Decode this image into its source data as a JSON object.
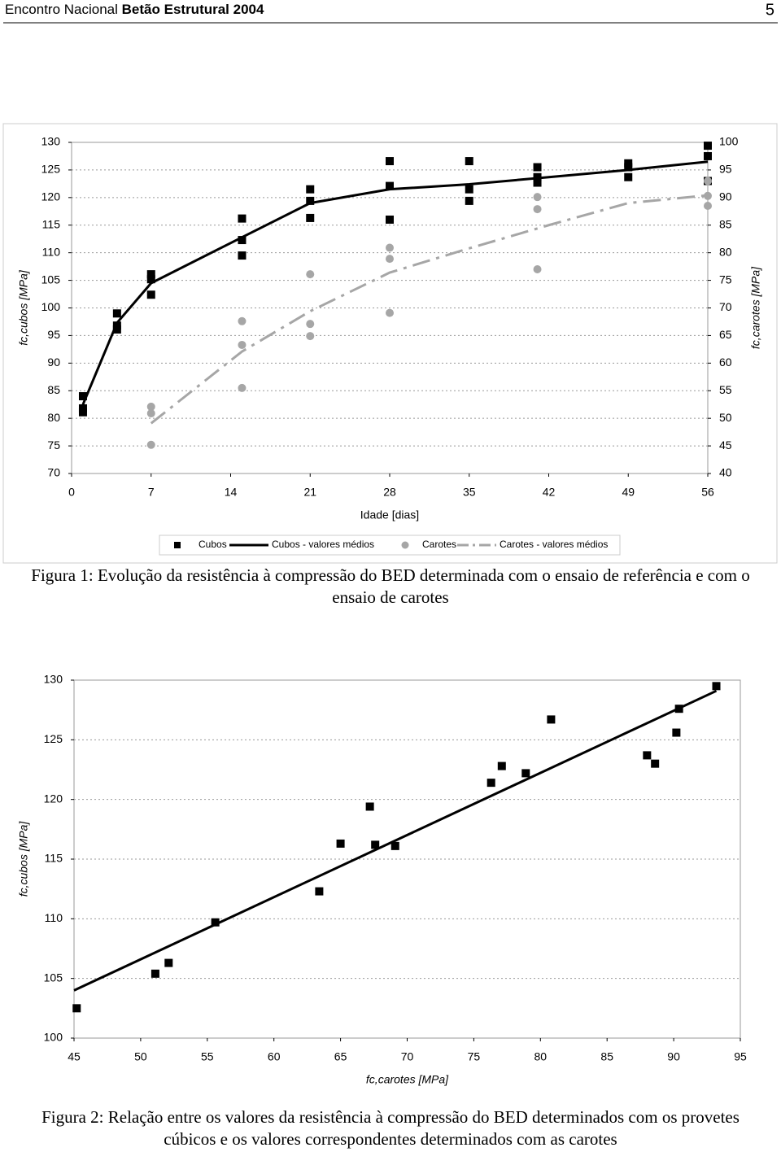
{
  "header": {
    "left": "Encontro Nacional",
    "bold": "Betão Estrutural 2004",
    "page": "5"
  },
  "captions": [
    "Figura 1: Evolução da resistência à compressão do BED determinada com o ensaio de referência e com o ensaio de carotes",
    "Figura 2: Relação entre os valores da resistência à compressão do BED determinados com os provetes cúbicos e os valores correspondentes determinados com as carotes"
  ],
  "chart_data": [
    {
      "type": "scatter",
      "x_label": "Idade [dias]",
      "y_label": "fc,cubos [MPa]",
      "y2_label": "fc,carotes [MPa]",
      "xlim": [
        0,
        56
      ],
      "xticks": [
        0,
        7,
        14,
        21,
        28,
        35,
        42,
        49,
        56
      ],
      "ylim": [
        70,
        130
      ],
      "yticks": [
        70,
        75,
        80,
        85,
        90,
        95,
        100,
        105,
        110,
        115,
        120,
        125,
        130
      ],
      "y2lim": [
        40,
        100
      ],
      "y2ticks": [
        40,
        45,
        50,
        55,
        60,
        65,
        70,
        75,
        80,
        85,
        90,
        95,
        100
      ],
      "grid": true,
      "legend": "bottom",
      "series": [
        {
          "name": "Cubos",
          "color": "#000000",
          "mode": "markers",
          "marker": "square",
          "x": [
            1,
            1,
            1,
            4,
            4,
            4,
            7,
            7,
            7,
            15,
            15,
            15,
            21,
            21,
            21,
            28,
            28,
            28,
            35,
            35,
            35,
            41,
            41,
            41,
            49,
            49,
            49,
            56,
            56,
            56
          ],
          "values": [
            84,
            81.8,
            81.1,
            99,
            96.8,
            96.1,
            106.1,
            105.2,
            102.4,
            116.2,
            112.3,
            109.5,
            121.5,
            119.4,
            116.3,
            126.6,
            122.1,
            116,
            126.6,
            121.5,
            119.4,
            125.5,
            123.7,
            122.7,
            126.2,
            125.5,
            123.7,
            129.4,
            127.5,
            123
          ]
        },
        {
          "name": "Cubos - valores médios",
          "color": "#000000",
          "mode": "line",
          "dash": false,
          "x": [
            1,
            4,
            7,
            15,
            21,
            28,
            35,
            42,
            49,
            56
          ],
          "values": [
            82.5,
            97.3,
            104.5,
            112.8,
            119,
            121.5,
            122.4,
            123.7,
            125,
            126.5
          ]
        },
        {
          "name": "Carotes",
          "color": "#a6a6a6",
          "mode": "markers",
          "marker": "circle",
          "axis": "y2",
          "x": [
            7,
            7,
            7,
            15,
            15,
            15,
            21,
            21,
            21,
            28,
            28,
            28,
            41,
            41,
            41,
            56,
            56,
            56
          ],
          "values": [
            52.1,
            50.9,
            45.2,
            67.6,
            63.3,
            55.5,
            76.1,
            67.1,
            64.9,
            80.9,
            78.9,
            69.1,
            90.1,
            87.9,
            77,
            93,
            90.3,
            88.5
          ]
        },
        {
          "name": "Carotes - valores médios",
          "color": "#a6a6a6",
          "mode": "line",
          "dash": true,
          "axis": "y2",
          "x": [
            7,
            15,
            21,
            28,
            35,
            42,
            49,
            56
          ],
          "values": [
            49.1,
            62.1,
            69.4,
            76.4,
            80.8,
            85,
            89,
            90.4
          ]
        }
      ]
    },
    {
      "type": "scatter",
      "x_label": "fc,carotes [MPa]",
      "y_label": "fc,cubos [MPa]",
      "xlim": [
        45,
        95
      ],
      "xticks": [
        45,
        50,
        55,
        60,
        65,
        70,
        75,
        80,
        85,
        90,
        95
      ],
      "ylim": [
        100,
        130
      ],
      "yticks": [
        100,
        105,
        110,
        115,
        120,
        125,
        130
      ],
      "grid": true,
      "series": [
        {
          "color": "#000000",
          "mode": "markers",
          "marker": "square",
          "x": [
            45.2,
            51.1,
            52.1,
            55.6,
            63.4,
            65,
            67.2,
            67.6,
            69.1,
            76.3,
            77.1,
            78.9,
            80.8,
            88,
            88.6,
            90.2,
            90.4,
            93.2
          ],
          "values": [
            102.5,
            105.4,
            106.3,
            109.7,
            112.3,
            116.3,
            119.4,
            116.2,
            116.1,
            121.4,
            122.8,
            122.2,
            126.7,
            123.7,
            123,
            125.6,
            127.6,
            129.5
          ]
        },
        {
          "color": "#000000",
          "mode": "line",
          "dash": false,
          "x": [
            45,
            93.2
          ],
          "values": [
            104,
            129.1
          ]
        }
      ]
    }
  ]
}
